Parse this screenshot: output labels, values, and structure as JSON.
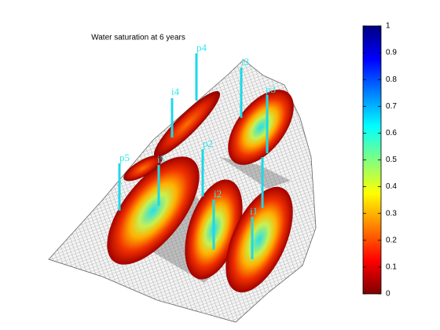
{
  "chart_data": {
    "type": "surface",
    "title": "Water saturation at 6 years",
    "colormap": "jet",
    "clim": [
      0,
      1
    ],
    "cticks": [
      0,
      0.1,
      0.2,
      0.3,
      0.4,
      0.5,
      0.6,
      0.7,
      0.8,
      0.9,
      1
    ],
    "wells": [
      "p4",
      "i4",
      "i3",
      "p3",
      "p5",
      "i5",
      "p2",
      "i2",
      "i1"
    ]
  }
}
